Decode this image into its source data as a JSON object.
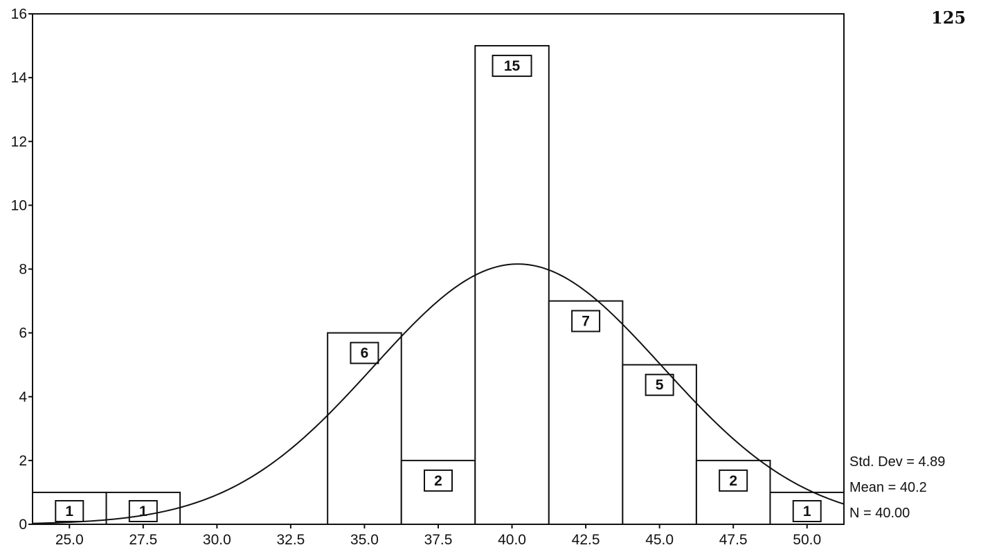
{
  "page_number": "125",
  "colors": {
    "ink": "#111111",
    "bar_fill": "#ffffff",
    "watermark": "#f0c64a"
  },
  "chart_data": {
    "type": "bar",
    "subtype": "histogram-with-normal-curve",
    "bin_width": 2.5,
    "bins": [
      {
        "center": 25.0,
        "count": 1
      },
      {
        "center": 27.5,
        "count": 1
      },
      {
        "center": 30.0,
        "count": 0
      },
      {
        "center": 32.5,
        "count": 0
      },
      {
        "center": 35.0,
        "count": 6
      },
      {
        "center": 37.5,
        "count": 2
      },
      {
        "center": 40.0,
        "count": 15
      },
      {
        "center": 42.5,
        "count": 7
      },
      {
        "center": 45.0,
        "count": 5
      },
      {
        "center": 47.5,
        "count": 2
      },
      {
        "center": 50.0,
        "count": 1
      }
    ],
    "x_tick_labels": [
      "25.0",
      "27.5",
      "30.0",
      "32.5",
      "35.0",
      "37.5",
      "40.0",
      "42.5",
      "45.0",
      "47.5",
      "50.0"
    ],
    "y_tick_labels": [
      "0",
      "2",
      "4",
      "6",
      "8",
      "10",
      "12",
      "14",
      "16"
    ],
    "xlim": [
      23.75,
      51.25
    ],
    "ylim": [
      0,
      16
    ],
    "normal_curve": {
      "mean": 40.2,
      "std_dev": 4.89,
      "n": 40
    },
    "stats": {
      "std_dev_label": "Std. Dev = 4.89",
      "mean_label": "Mean = 40.2",
      "n_label": "N = 40.00"
    },
    "title": "",
    "xlabel": "",
    "ylabel": "",
    "grid": false,
    "legend": "none"
  }
}
